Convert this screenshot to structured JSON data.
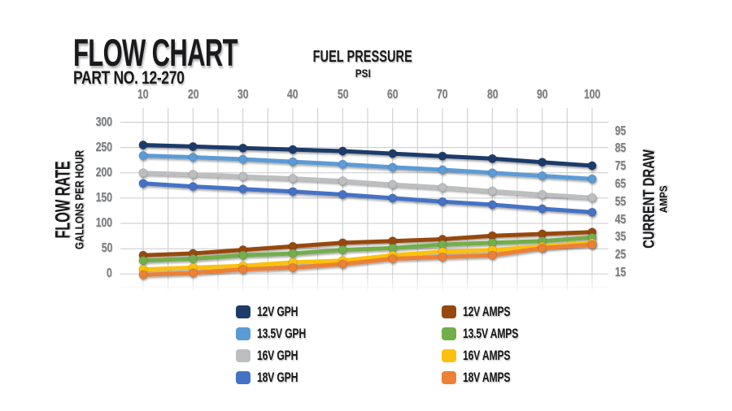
{
  "header": {
    "title": "FLOW CHART",
    "part_number": "PART NO. 12-270"
  },
  "chart_data": {
    "type": "line",
    "x_axis": {
      "title": "FUEL PRESSURE",
      "subtitle": "PSI",
      "position": "top",
      "ticks": [
        10,
        20,
        30,
        40,
        50,
        60,
        70,
        80,
        90,
        100
      ],
      "minor_tick_step": 5,
      "range": [
        10,
        100
      ]
    },
    "y_axis_left": {
      "title": "FLOW RATE",
      "subtitle": "GALLONS PER HOUR",
      "ticks": [
        300,
        250,
        200,
        150,
        100,
        50,
        0
      ],
      "range": [
        0,
        300
      ]
    },
    "y_axis_right": {
      "title": "CURRENT DRAW",
      "subtitle": "AMPS",
      "ticks": [
        95,
        85,
        75,
        65,
        55,
        45,
        35,
        25,
        15
      ],
      "range": [
        15,
        95
      ]
    },
    "grid": true,
    "legend_position": "bottom",
    "x": [
      10,
      20,
      30,
      40,
      50,
      60,
      70,
      80,
      90,
      100
    ],
    "series": [
      {
        "name": "12V GPH",
        "axis": "left",
        "color": "#1F3B69",
        "values": [
          255,
          252,
          249,
          246,
          243,
          238,
          233,
          228,
          221,
          214
        ]
      },
      {
        "name": "13.5V GPH",
        "axis": "left",
        "color": "#5B9BD5",
        "values": [
          234,
          231,
          227,
          222,
          217,
          211,
          206,
          200,
          194,
          188
        ]
      },
      {
        "name": "16V GPH",
        "axis": "left",
        "color": "#BCBEC0",
        "values": [
          200,
          197,
          193,
          189,
          184,
          177,
          171,
          164,
          157,
          151
        ]
      },
      {
        "name": "18V GPH",
        "axis": "left",
        "color": "#4472C4",
        "values": [
          179,
          173,
          168,
          163,
          157,
          150,
          143,
          137,
          129,
          122
        ]
      },
      {
        "name": "12V AMPS",
        "axis": "right",
        "color": "#97480E",
        "values": [
          25,
          26,
          28,
          30,
          32,
          33,
          34,
          36,
          37,
          38
        ]
      },
      {
        "name": "13.5V AMPS",
        "axis": "right",
        "color": "#73AE4C",
        "values": [
          22,
          23,
          25,
          26,
          28,
          29,
          31,
          32,
          33,
          35
        ]
      },
      {
        "name": "16V AMPS",
        "axis": "right",
        "color": "#FDC10D",
        "values": [
          17,
          18,
          19,
          21,
          22,
          25,
          27,
          28,
          30,
          32
        ]
      },
      {
        "name": "18V AMPS",
        "axis": "right",
        "color": "#ED8036",
        "values": [
          14,
          15,
          17,
          18,
          20,
          23,
          24,
          25,
          29,
          31
        ]
      }
    ]
  }
}
